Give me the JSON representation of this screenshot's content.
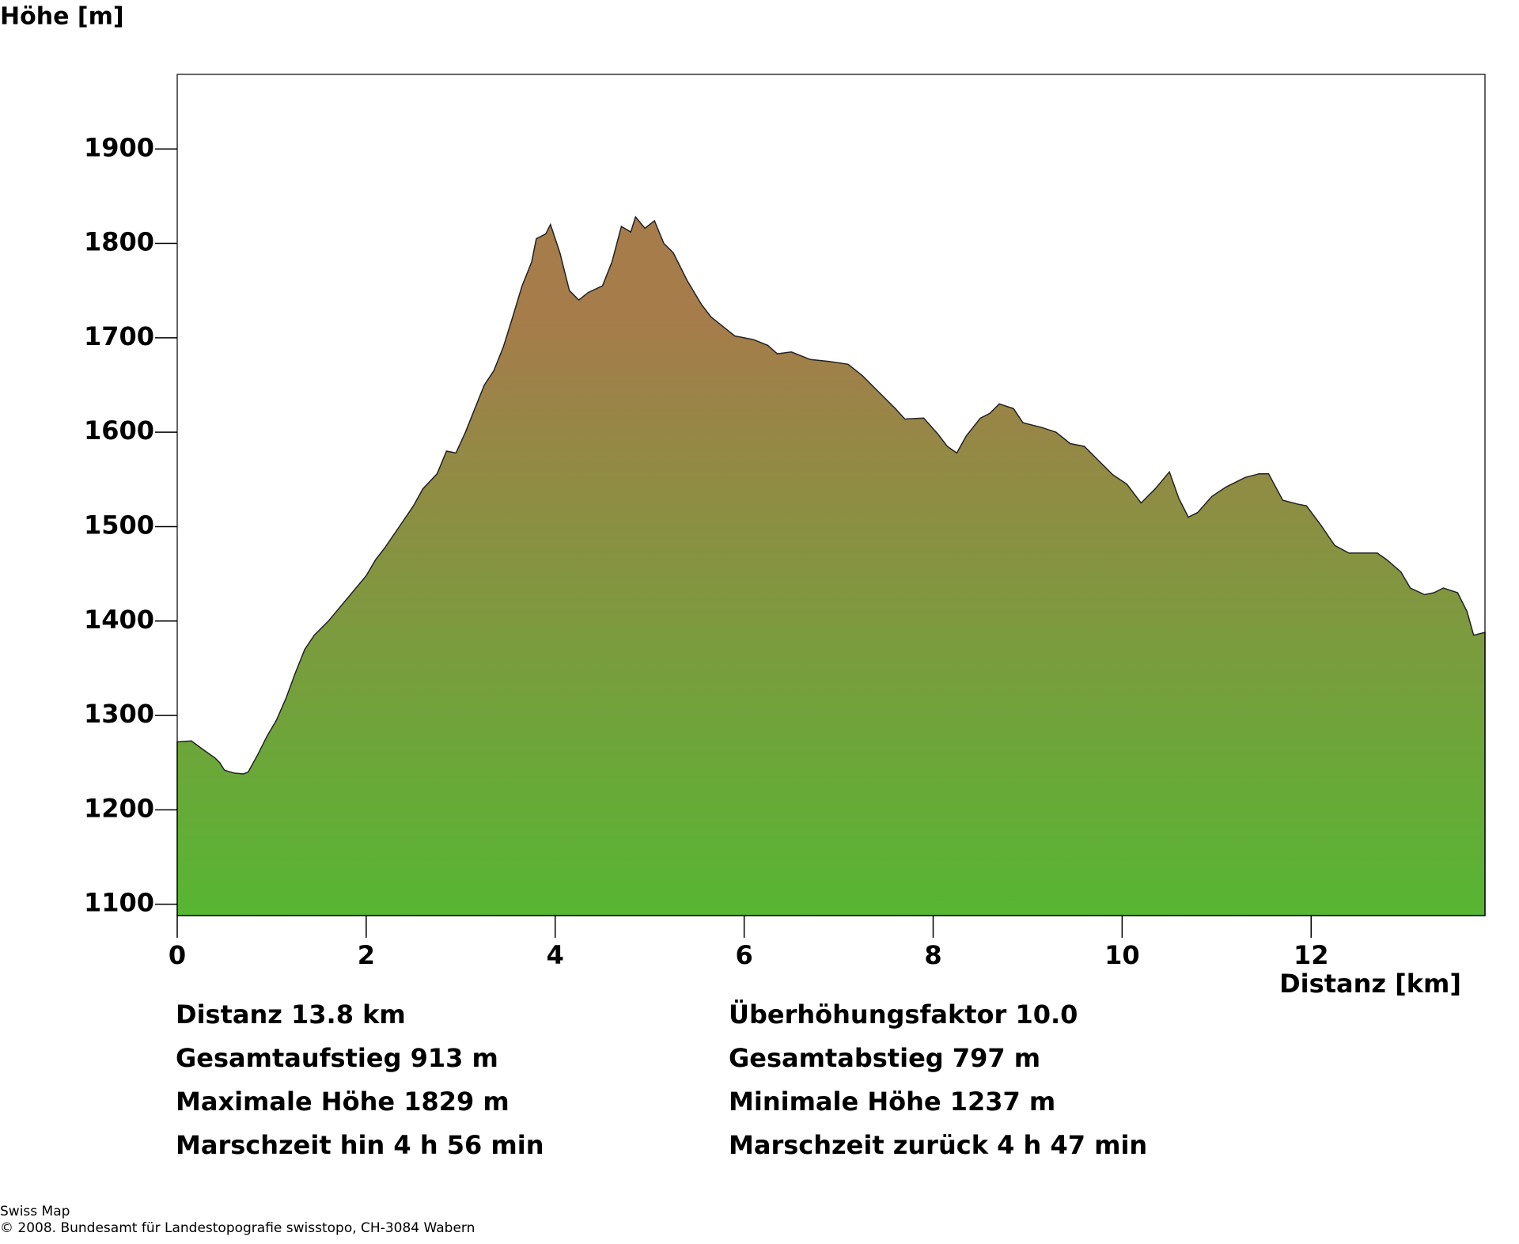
{
  "chart_data": {
    "type": "area",
    "y_label": "Höhe [m]",
    "x_label": "Distanz [km]",
    "x": [
      0,
      0.15,
      0.3,
      0.4,
      0.45,
      0.5,
      0.6,
      0.7,
      0.75,
      0.85,
      0.95,
      1.05,
      1.15,
      1.25,
      1.35,
      1.45,
      1.6,
      1.75,
      1.85,
      2.0,
      2.1,
      2.2,
      2.35,
      2.5,
      2.6,
      2.75,
      2.85,
      2.95,
      3.05,
      3.15,
      3.25,
      3.35,
      3.45,
      3.55,
      3.65,
      3.75,
      3.8,
      3.9,
      3.95,
      4.05,
      4.15,
      4.25,
      4.35,
      4.5,
      4.6,
      4.7,
      4.8,
      4.85,
      4.95,
      5.05,
      5.15,
      5.25,
      5.4,
      5.55,
      5.65,
      5.75,
      5.9,
      6.1,
      6.25,
      6.35,
      6.5,
      6.7,
      6.9,
      7.1,
      7.25,
      7.4,
      7.6,
      7.7,
      7.9,
      8.05,
      8.15,
      8.25,
      8.35,
      8.5,
      8.6,
      8.7,
      8.85,
      8.95,
      9.15,
      9.3,
      9.45,
      9.6,
      9.75,
      9.9,
      10.05,
      10.2,
      10.35,
      10.5,
      10.6,
      10.7,
      10.8,
      10.95,
      11.1,
      11.3,
      11.45,
      11.55,
      11.7,
      11.85,
      11.95,
      12.1,
      12.25,
      12.4,
      12.55,
      12.7,
      12.8,
      12.95,
      13.05,
      13.2,
      13.3,
      13.4,
      13.55,
      13.65,
      13.72,
      13.84
    ],
    "values": [
      1272,
      1273,
      1262,
      1255,
      1250,
      1242,
      1239,
      1238,
      1240,
      1258,
      1278,
      1295,
      1318,
      1345,
      1370,
      1385,
      1400,
      1418,
      1430,
      1448,
      1465,
      1478,
      1500,
      1522,
      1540,
      1556,
      1580,
      1578,
      1600,
      1625,
      1650,
      1665,
      1690,
      1722,
      1755,
      1780,
      1805,
      1810,
      1820,
      1790,
      1750,
      1740,
      1748,
      1755,
      1780,
      1818,
      1812,
      1828,
      1816,
      1824,
      1800,
      1790,
      1760,
      1735,
      1722,
      1714,
      1702,
      1698,
      1692,
      1683,
      1685,
      1677,
      1675,
      1672,
      1660,
      1645,
      1625,
      1614,
      1615,
      1598,
      1585,
      1578,
      1596,
      1615,
      1620,
      1630,
      1625,
      1610,
      1605,
      1600,
      1588,
      1585,
      1570,
      1555,
      1545,
      1525,
      1540,
      1558,
      1530,
      1510,
      1515,
      1532,
      1542,
      1552,
      1556,
      1556,
      1528,
      1524,
      1522,
      1502,
      1480,
      1472,
      1472,
      1472,
      1465,
      1452,
      1435,
      1428,
      1430,
      1435,
      1430,
      1410,
      1385,
      1388
    ],
    "xlim": [
      0,
      13.84
    ],
    "ylim": [
      1088,
      1979
    ],
    "xticks": [
      0,
      2,
      4,
      6,
      8,
      10,
      12
    ],
    "yticks": [
      1100,
      1200,
      1300,
      1400,
      1500,
      1600,
      1700,
      1800,
      1900
    ],
    "gradient": [
      "#a57c4a",
      "#57b633"
    ],
    "stats": [
      [
        "Distanz 13.8 km",
        "Überhöhungsfaktor 10.0"
      ],
      [
        "Gesamtaufstieg  913 m",
        "Gesamtabstieg  797 m"
      ],
      [
        "Maximale Höhe  1829 m",
        "Minimale Höhe  1237 m"
      ],
      [
        "Marschzeit hin  4 h 56 min",
        "Marschzeit zurück  4 h 47 min"
      ]
    ],
    "source": [
      "Swiss Map",
      "© 2008. Bundesamt für Landestopografie swisstopo, CH-3084 Wabern"
    ]
  }
}
